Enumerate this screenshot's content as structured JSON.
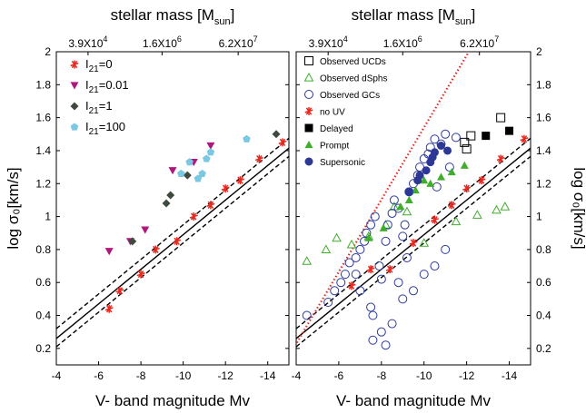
{
  "chart_data": [
    {
      "type": "scatter",
      "panel": "left",
      "xlabel": "V- band magnitude Mv",
      "ylabel": "log σ₀[km/s]",
      "top_axis_label": "stellar mass [M_sun]",
      "top_tick_labels": [
        "3.9X10^4",
        "1.6X10^6",
        "6.2X10^7"
      ],
      "x_ticks": [
        -4,
        -6,
        -8,
        -10,
        -12,
        -14
      ],
      "y_ticks": [
        0.2,
        0.4,
        0.6,
        0.8,
        1,
        1.2,
        1.4,
        1.6,
        1.8,
        2
      ],
      "xlim": [
        -4,
        -15
      ],
      "ylim": [
        0.1,
        2.0
      ],
      "legend_position": "top-left",
      "series": [
        {
          "name": "I21=0",
          "marker": "asterisk",
          "color": "#e8281e",
          "x": [
            -6.5,
            -7.0,
            -8.0,
            -8.7,
            -9.7,
            -10.5,
            -11.3,
            -12.0,
            -12.7,
            -13.6,
            -14.7
          ],
          "y": [
            0.44,
            0.55,
            0.65,
            0.8,
            0.85,
            1.0,
            1.07,
            1.17,
            1.22,
            1.35,
            1.45
          ]
        },
        {
          "name": "I21=0.01",
          "marker": "triangle-down",
          "color": "#b0177e",
          "x": [
            -6.5,
            -7.5,
            -8.2,
            -9.5,
            -10.5,
            -11.3
          ],
          "y": [
            0.79,
            0.85,
            0.92,
            1.28,
            1.33,
            1.43
          ]
        },
        {
          "name": "I21=1",
          "marker": "diamond",
          "color": "#3f4a3f",
          "x": [
            -7.6,
            -9.2,
            -9.4,
            -10.2,
            -14.4
          ],
          "y": [
            0.85,
            1.08,
            1.13,
            1.25,
            1.5
          ]
        },
        {
          "name": "I21=100",
          "marker": "pentagon",
          "color": "#7bc8e2",
          "x": [
            -9.9,
            -10.3,
            -10.7,
            -10.9,
            -11.1,
            -11.3,
            -13.0
          ],
          "y": [
            1.26,
            1.33,
            1.23,
            1.26,
            1.35,
            1.39,
            1.47
          ]
        }
      ],
      "reference_lines": {
        "style": "solid black with dashed black offsets",
        "color": "#000000"
      }
    },
    {
      "type": "scatter",
      "panel": "right",
      "xlabel": "V- band magnitude Mv",
      "ylabel": "log σ₀[km/s]",
      "top_axis_label": "stellar mass [M_sun]",
      "top_tick_labels": [
        "3.9X10^4",
        "1.6X10^6",
        "6.2X10^7"
      ],
      "x_ticks": [
        -4,
        -6,
        -8,
        -10,
        -12,
        -14
      ],
      "y_ticks": [
        0.2,
        0.4,
        0.6,
        0.8,
        1,
        1.2,
        1.4,
        1.6,
        1.8,
        2
      ],
      "xlim": [
        -4,
        -15
      ],
      "ylim": [
        0.1,
        2.0
      ],
      "legend_position": "top-left",
      "series": [
        {
          "name": "Observed UCDs",
          "marker": "square-open",
          "color": "#000000",
          "x": [
            -11.9,
            -12.0,
            -12.2,
            -13.6
          ],
          "y": [
            1.45,
            1.41,
            1.49,
            1.6
          ]
        },
        {
          "name": "Observed dSphs",
          "marker": "triangle-open",
          "color": "#3fae2a",
          "x": [
            -4.5,
            -5.4,
            -5.9,
            -6.6,
            -7.4,
            -8.2,
            -8.6,
            -9.2,
            -10.0,
            -11.5,
            -12.5,
            -13.4,
            -13.8
          ],
          "y": [
            0.73,
            0.8,
            0.87,
            0.83,
            0.88,
            0.95,
            1.06,
            1.03,
            0.84,
            0.97,
            1.01,
            1.04,
            1.06
          ]
        },
        {
          "name": "Observed GCs",
          "marker": "circle-open",
          "color": "#2e3a9e",
          "x": [
            -4.5,
            -5.5,
            -5.8,
            -6.1,
            -6.3,
            -6.5,
            -6.8,
            -7.0,
            -7.2,
            -7.3,
            -7.5,
            -7.7,
            -7.9,
            -8.0,
            -8.2,
            -8.3,
            -8.5,
            -8.6,
            -8.8,
            -9.0,
            -9.1,
            -9.3,
            -9.5,
            -9.7,
            -9.8,
            -10.0,
            -10.2,
            -10.3,
            -10.5,
            -10.8,
            -11.0,
            -11.2,
            -11.5,
            -7.5,
            -7.6,
            -8.0,
            -8.5,
            -9.0,
            -9.5,
            -10.0,
            -10.5,
            -11.0,
            -6.8,
            -7.0,
            -7.6,
            -8.2,
            -8.8,
            -9.2,
            -10.6
          ],
          "y": [
            0.4,
            0.48,
            0.55,
            0.6,
            0.65,
            0.72,
            0.75,
            0.8,
            0.85,
            0.9,
            0.95,
            1.0,
            0.7,
            0.62,
            0.85,
            0.95,
            1.02,
            1.1,
            1.05,
            0.88,
            0.95,
            1.15,
            1.2,
            1.25,
            1.3,
            1.35,
            1.38,
            1.42,
            1.47,
            1.44,
            1.5,
            1.3,
            1.48,
            0.45,
            0.4,
            0.3,
            0.35,
            0.5,
            0.55,
            0.65,
            0.7,
            0.8,
            0.65,
            0.55,
            0.25,
            0.22,
            0.6,
            0.75,
            1.18
          ]
        },
        {
          "name": "no UV",
          "marker": "asterisk",
          "color": "#e8281e",
          "x": [
            -6.6,
            -7.5,
            -8.4,
            -9.5,
            -10.5,
            -11.3,
            -12.0,
            -12.7,
            -13.6,
            -14.7
          ],
          "y": [
            0.58,
            0.68,
            0.68,
            0.84,
            0.98,
            1.07,
            1.17,
            1.22,
            1.35,
            1.47
          ]
        },
        {
          "name": "Delayed",
          "marker": "square",
          "color": "#000000",
          "x": [
            -12.9,
            -14.0
          ],
          "y": [
            1.49,
            1.52
          ]
        },
        {
          "name": "Prompt",
          "marker": "triangle",
          "color": "#3fae2a",
          "x": [
            -7.4,
            -8.1,
            -8.9,
            -9.3,
            -9.6,
            -10.0,
            -10.3,
            -10.8,
            -11.3,
            -11.9
          ],
          "y": [
            0.87,
            0.93,
            1.06,
            1.1,
            1.16,
            1.22,
            1.2,
            1.24,
            1.27,
            1.31
          ]
        },
        {
          "name": "Supersonic",
          "marker": "circle",
          "color": "#2d3796",
          "x": [
            -9.3,
            -9.8,
            -10.1,
            -10.3,
            -10.5,
            -10.8,
            -11.1,
            -9.7,
            -10.4
          ],
          "y": [
            1.15,
            1.25,
            1.28,
            1.33,
            1.39,
            1.43,
            1.4,
            1.22,
            1.36
          ]
        }
      ],
      "reference_lines": {
        "style": "solid black with dashed black offsets plus dotted red steep line",
        "color": "#000000",
        "fit_color": "#e8281e"
      }
    }
  ]
}
